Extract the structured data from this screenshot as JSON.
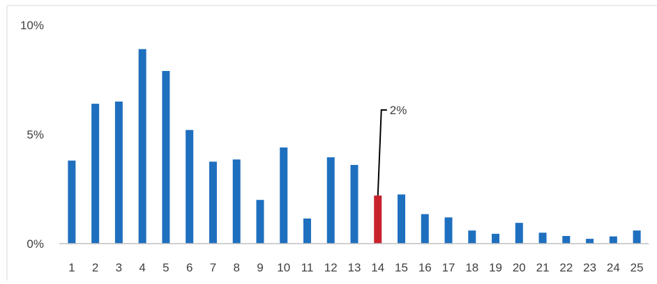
{
  "chart_data": {
    "type": "bar",
    "title": "",
    "xlabel": "",
    "ylabel": "",
    "categories": [
      "1",
      "2",
      "3",
      "4",
      "5",
      "6",
      "7",
      "8",
      "9",
      "10",
      "11",
      "12",
      "13",
      "14",
      "15",
      "16",
      "17",
      "18",
      "19",
      "20",
      "21",
      "22",
      "23",
      "24",
      "25"
    ],
    "values": [
      3.8,
      6.4,
      6.5,
      8.9,
      7.9,
      5.2,
      3.75,
      3.85,
      2.0,
      4.4,
      1.15,
      3.95,
      3.6,
      2.2,
      2.25,
      1.35,
      1.2,
      0.6,
      0.45,
      0.95,
      0.5,
      0.35,
      0.22,
      0.33,
      0.6
    ],
    "ylim": [
      0,
      10
    ],
    "yticks": [
      0,
      5,
      10
    ],
    "ytick_labels": [
      "0%",
      "5%",
      "10%"
    ],
    "grid": false,
    "legend": "none",
    "highlight": {
      "index": 13,
      "label": "2%"
    },
    "colors": {
      "bar": "#1f6fbf",
      "highlight": "#c8232c",
      "axis": "#bfbfbf",
      "text": "#404040",
      "leader": "#000000"
    }
  }
}
